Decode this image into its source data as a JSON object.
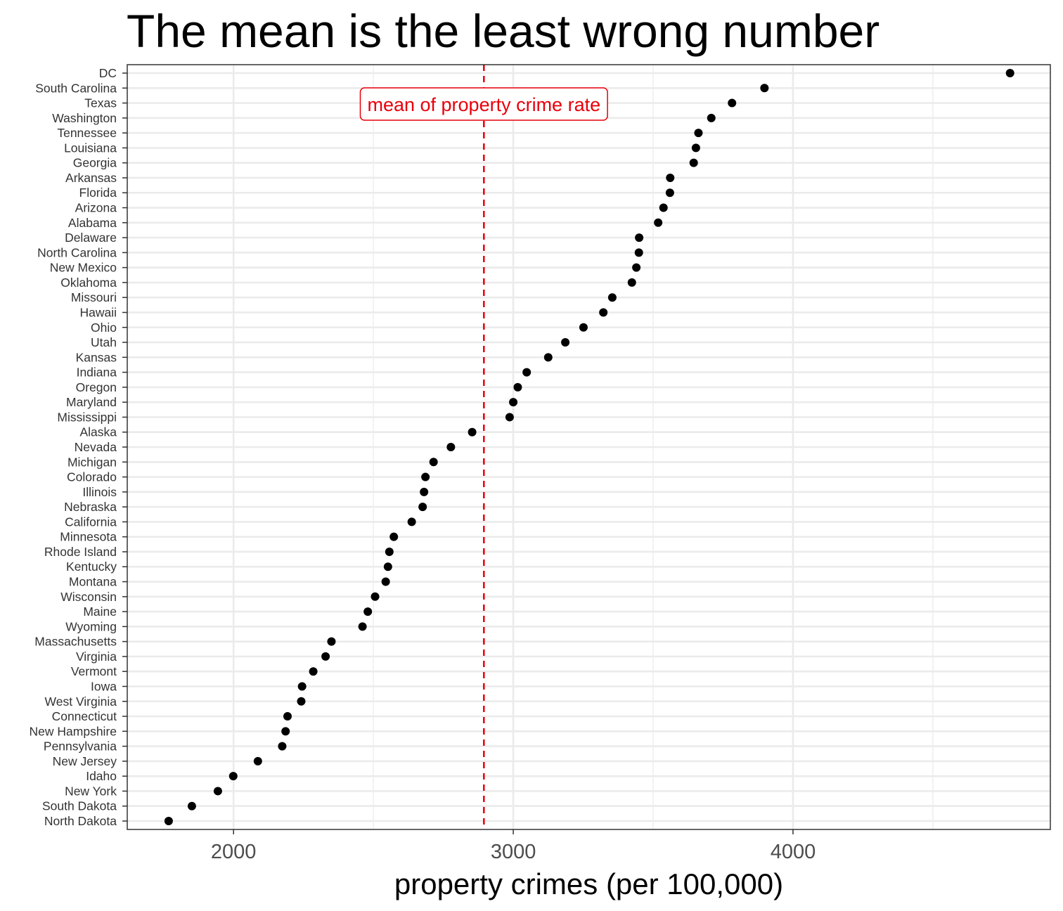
{
  "chart_data": {
    "type": "scatter",
    "title": "The mean is the least wrong number",
    "xlabel": "property crimes (per 100,000)",
    "ylabel": "",
    "xlim": [
      1620,
      4920
    ],
    "xticks": [
      2000,
      3000,
      4000
    ],
    "grid": true,
    "colors": {
      "points": "#000000",
      "mean_line": "#e8000b",
      "grid": "#ebebeb",
      "panel_border": "#333333"
    },
    "mean_line": {
      "value": 2895,
      "label": "mean of property crime rate"
    },
    "categories": [
      "DC",
      "South Carolina",
      "Texas",
      "Washington",
      "Tennessee",
      "Louisiana",
      "Georgia",
      "Arkansas",
      "Florida",
      "Arizona",
      "Alabama",
      "Delaware",
      "North Carolina",
      "New Mexico",
      "Oklahoma",
      "Missouri",
      "Hawaii",
      "Ohio",
      "Utah",
      "Kansas",
      "Indiana",
      "Oregon",
      "Maryland",
      "Mississippi",
      "Alaska",
      "Nevada",
      "Michigan",
      "Colorado",
      "Illinois",
      "Nebraska",
      "California",
      "Minnesota",
      "Rhode Island",
      "Kentucky",
      "Montana",
      "Wisconsin",
      "Maine",
      "Wyoming",
      "Massachusetts",
      "Virginia",
      "Vermont",
      "Iowa",
      "West Virginia",
      "Connecticut",
      "New Hampshire",
      "Pennsylvania",
      "New Jersey",
      "Idaho",
      "New York",
      "South Dakota",
      "North Dakota"
    ],
    "values": [
      4776,
      3898,
      3782,
      3708,
      3662,
      3653,
      3645,
      3561,
      3560,
      3537,
      3518,
      3450,
      3449,
      3440,
      3424,
      3354,
      3322,
      3251,
      3186,
      3125,
      3048,
      3016,
      3000,
      2987,
      2853,
      2777,
      2715,
      2686,
      2681,
      2676,
      2637,
      2573,
      2557,
      2552,
      2544,
      2506,
      2480,
      2461,
      2350,
      2329,
      2285,
      2245,
      2242,
      2193,
      2186,
      2174,
      2087,
      1999,
      1944,
      1851,
      1768
    ]
  }
}
